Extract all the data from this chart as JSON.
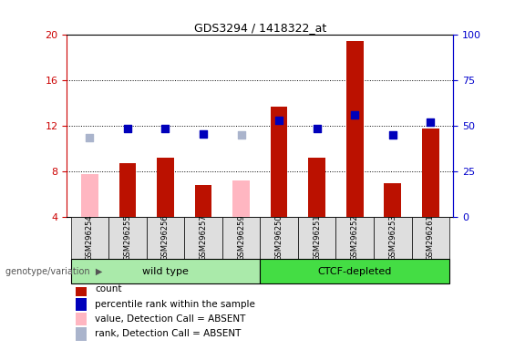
{
  "title": "GDS3294 / 1418322_at",
  "samples": [
    "GSM296254",
    "GSM296255",
    "GSM296256",
    "GSM296257",
    "GSM296259",
    "GSM296250",
    "GSM296251",
    "GSM296252",
    "GSM296253",
    "GSM296261"
  ],
  "count_values": [
    7.8,
    8.7,
    9.2,
    6.8,
    7.2,
    13.7,
    9.2,
    19.5,
    7.0,
    11.8
  ],
  "rank_values": [
    11.0,
    11.8,
    11.8,
    11.3,
    11.2,
    12.5,
    11.8,
    13.0,
    11.2,
    12.3
  ],
  "count_absent": [
    true,
    false,
    false,
    false,
    true,
    false,
    false,
    false,
    false,
    false
  ],
  "rank_absent": [
    true,
    false,
    false,
    false,
    true,
    false,
    false,
    false,
    false,
    false
  ],
  "group1_indices": [
    0,
    1,
    2,
    3,
    4
  ],
  "group2_indices": [
    5,
    6,
    7,
    8,
    9
  ],
  "group1_label": "wild type",
  "group2_label": "CTCF-depleted",
  "group1_color": "#aaeaaa",
  "group2_color": "#44dd44",
  "group_label_text": "genotype/variation",
  "ylim_left": [
    4,
    20
  ],
  "yticks_left": [
    4,
    8,
    12,
    16,
    20
  ],
  "ylim_right": [
    0,
    100
  ],
  "yticks_right": [
    0,
    25,
    50,
    75,
    100
  ],
  "grid_values": [
    8,
    12,
    16
  ],
  "bar_color_present": "#bb1100",
  "bar_color_absent": "#ffb6c1",
  "dot_color_present": "#0000bb",
  "dot_color_absent": "#aab4cc",
  "axis_color_left": "#cc0000",
  "axis_color_right": "#0000cc",
  "sample_box_color": "#dedede",
  "legend_items": [
    {
      "color": "#bb1100",
      "label": "count"
    },
    {
      "color": "#0000bb",
      "label": "percentile rank within the sample"
    },
    {
      "color": "#ffb6c1",
      "label": "value, Detection Call = ABSENT"
    },
    {
      "color": "#aab4cc",
      "label": "rank, Detection Call = ABSENT"
    }
  ]
}
